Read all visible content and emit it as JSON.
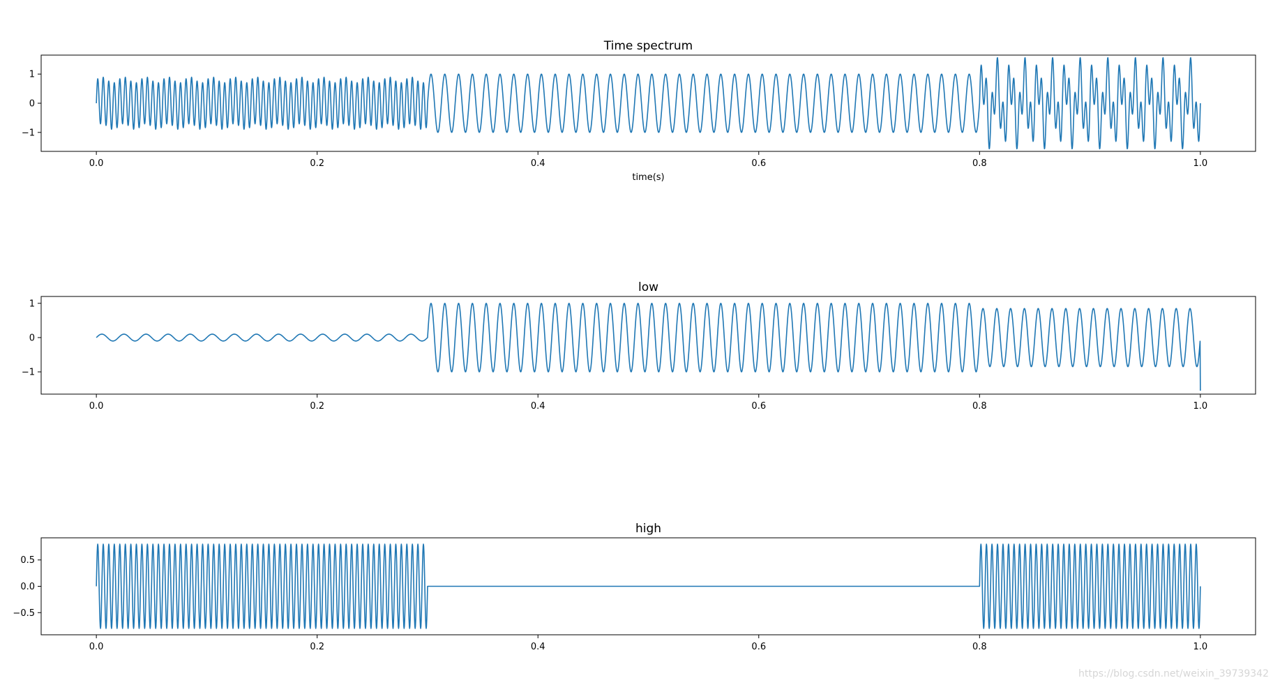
{
  "watermark": "https://blog.csdn.net/weixin_39739342",
  "colors": {
    "series": "#1f77b4",
    "axes": "#000000",
    "background": "#ffffff"
  },
  "chart_data": [
    {
      "type": "line",
      "title": "Time spectrum",
      "xlabel": "time(s)",
      "ylabel": "",
      "xlim": [
        -0.05,
        1.05
      ],
      "ylim": [
        -1.65,
        1.65
      ],
      "xticks": [
        0.0,
        0.2,
        0.4,
        0.6,
        0.8,
        1.0
      ],
      "xtick_labels": [
        "0.0",
        "0.2",
        "0.4",
        "0.6",
        "0.8",
        "1.0"
      ],
      "yticks": [
        1,
        0,
        -1
      ],
      "ytick_labels": [
        "1",
        "0",
        "−1"
      ],
      "grid": false,
      "series": [
        {
          "segments": [
            {
              "t_start": 0.0,
              "t_end": 0.3,
              "components": [
                {
                  "amplitude": 0.8,
                  "frequency_hz": 200
                },
                {
                  "amplitude": 0.1,
                  "frequency_hz": 50
                }
              ]
            },
            {
              "t_start": 0.3,
              "t_end": 0.8,
              "components": [
                {
                  "amplitude": 1.0,
                  "frequency_hz": 80
                }
              ]
            },
            {
              "t_start": 0.8,
              "t_end": 1.0,
              "components": [
                {
                  "amplitude": 0.8,
                  "frequency_hz": 200
                },
                {
                  "amplitude": 0.8,
                  "frequency_hz": 80
                }
              ]
            }
          ]
        }
      ]
    },
    {
      "type": "line",
      "title": "low",
      "xlabel": "",
      "ylabel": "",
      "xlim": [
        -0.05,
        1.05
      ],
      "ylim": [
        -1.65,
        1.2
      ],
      "xticks": [
        0.0,
        0.2,
        0.4,
        0.6,
        0.8,
        1.0
      ],
      "xtick_labels": [
        "0.0",
        "0.2",
        "0.4",
        "0.6",
        "0.8",
        "1.0"
      ],
      "yticks": [
        1,
        0,
        -1
      ],
      "ytick_labels": [
        "1",
        "0",
        "−1"
      ],
      "grid": false,
      "series": [
        {
          "segments": [
            {
              "t_start": 0.0,
              "t_end": 0.3,
              "components": [
                {
                  "amplitude": 0.1,
                  "frequency_hz": 50
                }
              ]
            },
            {
              "t_start": 0.3,
              "t_end": 0.8,
              "components": [
                {
                  "amplitude": 1.0,
                  "frequency_hz": 80
                }
              ]
            },
            {
              "t_start": 0.8,
              "t_end": 1.0,
              "components": [
                {
                  "amplitude": 0.85,
                  "frequency_hz": 80
                }
              ]
            }
          ],
          "end_value": -1.55
        }
      ]
    },
    {
      "type": "line",
      "title": "high",
      "xlabel": "",
      "ylabel": "",
      "xlim": [
        -0.05,
        1.05
      ],
      "ylim": [
        -0.92,
        0.92
      ],
      "xticks": [
        0.0,
        0.2,
        0.4,
        0.6,
        0.8,
        1.0
      ],
      "xtick_labels": [
        "0.0",
        "0.2",
        "0.4",
        "0.6",
        "0.8",
        "1.0"
      ],
      "yticks": [
        0.5,
        0.0,
        -0.5
      ],
      "ytick_labels": [
        "0.5",
        "0.0",
        "−0.5"
      ],
      "grid": false,
      "series": [
        {
          "segments": [
            {
              "t_start": 0.0,
              "t_end": 0.3,
              "components": [
                {
                  "amplitude": 0.8,
                  "frequency_hz": 200
                }
              ]
            },
            {
              "t_start": 0.3,
              "t_end": 0.8,
              "components": []
            },
            {
              "t_start": 0.8,
              "t_end": 1.0,
              "components": [
                {
                  "amplitude": 0.8,
                  "frequency_hz": 200
                }
              ]
            }
          ]
        }
      ]
    }
  ]
}
